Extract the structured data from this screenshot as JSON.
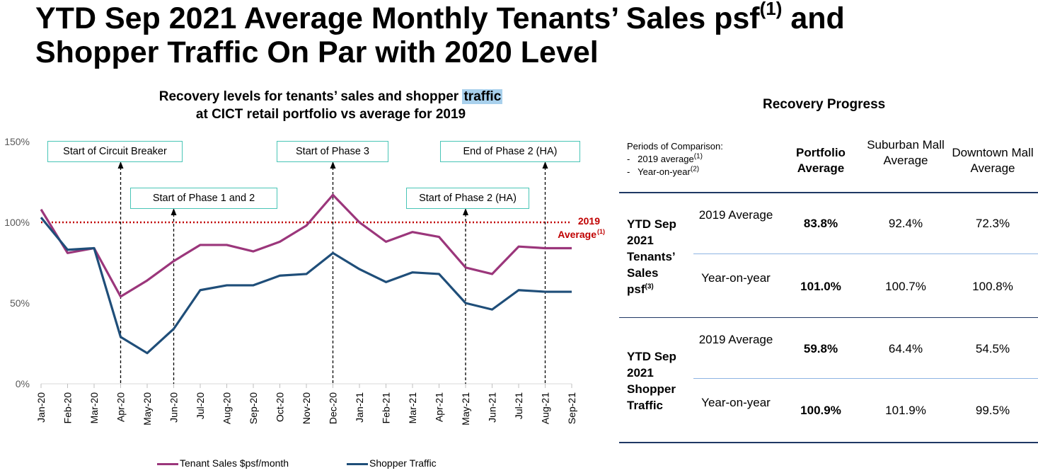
{
  "title": {
    "line1": "YTD Sep 2021 Average Monthly Tenants’ Sales psf",
    "sup": "(1)",
    "line1_end": " and",
    "line2": "Shopper Traffic On Par with 2020 Level"
  },
  "chart_title": {
    "line1_start": "Recovery levels for tenants’ sales and shopper ",
    "line1_highlight": "traffic",
    "line2": "at CICT retail portfolio vs average for 2019"
  },
  "chart_data": {
    "type": "line",
    "categories": [
      "Jan-20",
      "Feb-20",
      "Mar-20",
      "Apr-20",
      "May-20",
      "Jun-20",
      "Jul-20",
      "Aug-20",
      "Sep-20",
      "Oct-20",
      "Nov-20",
      "Dec-20",
      "Jan-21",
      "Feb-21",
      "Mar-21",
      "Apr-21",
      "May-21",
      "Jun-21",
      "Jul-21",
      "Aug-21",
      "Sep-21"
    ],
    "series": [
      {
        "name": "Tenant Sales $psf/month",
        "color": "#9b367b",
        "values": [
          108,
          81,
          84,
          54,
          64,
          76,
          86,
          86,
          82,
          88,
          98,
          117,
          100,
          88,
          94,
          91,
          72,
          68,
          85,
          84,
          84
        ]
      },
      {
        "name": "Shopper Traffic",
        "color": "#1f4e79",
        "values": [
          103,
          83,
          84,
          29,
          19,
          34,
          58,
          61,
          61,
          67,
          68,
          81,
          71,
          63,
          69,
          68,
          50,
          46,
          58,
          57,
          57
        ]
      }
    ],
    "reference_line": {
      "value": 100,
      "label_line1": "2019",
      "label_line2": "Average",
      "label_sup": "(1)",
      "color": "#c00000"
    },
    "yticks": [
      "0%",
      "50%",
      "100%",
      "150%"
    ],
    "ylim": [
      0,
      150
    ],
    "annotations": [
      {
        "label": "Start of Circuit Breaker",
        "category_index": 3
      },
      {
        "label": "Start of Phase 1 and 2",
        "category_index": 5
      },
      {
        "label": "Start of Phase 3",
        "category_index": 11
      },
      {
        "label": "Start of Phase 2 (HA)",
        "category_index": 16
      },
      {
        "label": "End of Phase 2 (HA)",
        "category_index": 19
      }
    ]
  },
  "recovery": {
    "title": "Recovery Progress",
    "periods_label": "Periods of Comparison:",
    "period1": "2019 average",
    "period1_sup": "(1)",
    "period2": "Year-on-year",
    "period2_sup": "(2)",
    "columns": [
      "Portfolio Average",
      "Suburban Mall Average",
      "Downtown Mall Average"
    ],
    "groups": [
      {
        "name_lines": [
          "YTD Sep",
          "2021",
          "Tenants’",
          "Sales",
          "psf"
        ],
        "name_sup": "(3)",
        "rows": [
          {
            "label": "2019 Average",
            "values": [
              "83.8%",
              "92.4%",
              "72.3%"
            ]
          },
          {
            "label": "Year-on-year",
            "values": [
              "101.0%",
              "100.7%",
              "100.8%"
            ]
          }
        ]
      },
      {
        "name_lines": [
          "YTD Sep",
          "2021",
          "Shopper",
          "Traffic"
        ],
        "name_sup": "",
        "rows": [
          {
            "label": "2019 Average",
            "values": [
              "59.8%",
              "64.4%",
              "54.5%"
            ]
          },
          {
            "label": "Year-on-year",
            "values": [
              "100.9%",
              "101.9%",
              "99.5%"
            ]
          }
        ]
      }
    ]
  }
}
